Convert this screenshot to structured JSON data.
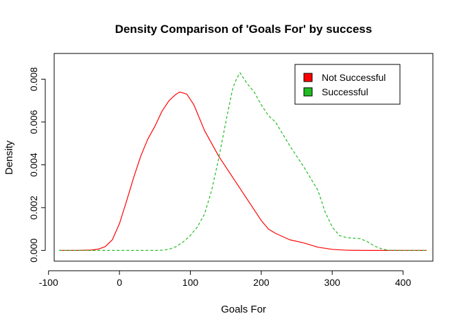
{
  "chart_data": {
    "type": "line",
    "title": "Density Comparison of 'Goals For' by success",
    "xlabel": "Goals For",
    "ylabel": "Density",
    "xlim": [
      -92,
      442
    ],
    "ylim": [
      -0.0005,
      0.0092
    ],
    "x_ticks": [
      -100,
      0,
      100,
      200,
      300,
      400
    ],
    "x_tick_labels": [
      "-100",
      "0",
      "100",
      "200",
      "300",
      "400"
    ],
    "y_ticks": [
      0,
      0.002,
      0.004,
      0.006,
      0.008
    ],
    "y_tick_labels": [
      "0.000",
      "0.002",
      "0.004",
      "0.006",
      "0.008"
    ],
    "legend_position": "top-right",
    "grid": false,
    "series": [
      {
        "name": "Not Successful",
        "color": "#FF0000",
        "style": "solid",
        "x": [
          -85,
          -60,
          -40,
          -30,
          -20,
          -10,
          0,
          10,
          20,
          30,
          40,
          50,
          60,
          70,
          80,
          85,
          95,
          105,
          120,
          140,
          160,
          180,
          200,
          210,
          220,
          240,
          260,
          280,
          300,
          320,
          350,
          380,
          410,
          433
        ],
        "y": [
          0,
          0,
          2e-05,
          6e-05,
          0.00018,
          0.0005,
          0.00125,
          0.0023,
          0.0034,
          0.0044,
          0.0052,
          0.0058,
          0.0065,
          0.007,
          0.0073,
          0.0074,
          0.0073,
          0.0068,
          0.0056,
          0.0044,
          0.0034,
          0.0024,
          0.0014,
          0.001,
          0.0008,
          0.0005,
          0.00035,
          0.00015,
          5e-05,
          1e-05,
          0,
          0,
          0,
          0
        ]
      },
      {
        "name": "Successful",
        "color": "#22BB22",
        "style": "dashed",
        "x": [
          -85,
          0,
          50,
          60,
          70,
          80,
          90,
          100,
          110,
          120,
          130,
          140,
          150,
          160,
          165,
          170,
          180,
          190,
          200,
          210,
          220,
          240,
          260,
          280,
          290,
          300,
          310,
          320,
          340,
          350,
          360,
          370,
          380,
          400,
          433
        ],
        "y": [
          0,
          0,
          0,
          1e-05,
          5e-05,
          0.00018,
          0.0004,
          0.0007,
          0.0011,
          0.0017,
          0.0028,
          0.0043,
          0.006,
          0.0076,
          0.008,
          0.0083,
          0.0078,
          0.0074,
          0.0068,
          0.0063,
          0.006,
          0.0049,
          0.0039,
          0.0028,
          0.0018,
          0.0011,
          0.0007,
          0.0006,
          0.00055,
          0.0004,
          0.0002,
          7e-05,
          1e-05,
          0,
          0
        ]
      }
    ]
  }
}
